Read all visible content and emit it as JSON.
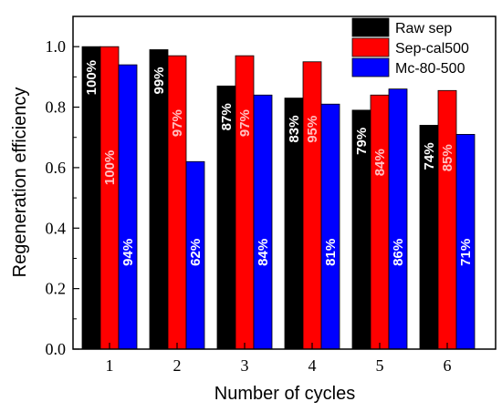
{
  "chart_data": {
    "type": "bar",
    "title": "",
    "xlabel": "Number of cycles",
    "ylabel": "Regeneration efficiency",
    "categories": [
      "1",
      "2",
      "3",
      "4",
      "5",
      "6"
    ],
    "ylim": [
      0,
      1.1
    ],
    "yticks": [
      "0.0",
      "0.2",
      "0.4",
      "0.6",
      "0.8",
      "1.0"
    ],
    "legend_position": "top-right",
    "grid": false,
    "series": [
      {
        "name": "Raw sep",
        "color": "#000000",
        "label_color": "#ffffff",
        "values": [
          1.0,
          0.99,
          0.87,
          0.83,
          0.79,
          0.74
        ],
        "labels": [
          "100%",
          "99%",
          "87%",
          "83%",
          "79%",
          "74%"
        ]
      },
      {
        "name": "Sep-cal500",
        "color": "#ff0000",
        "label_color": "#ffc0c0",
        "values": [
          1.0,
          0.97,
          0.97,
          0.95,
          0.84,
          0.855
        ],
        "labels": [
          "100%",
          "97%",
          "97%",
          "95%",
          "84%",
          "85%"
        ]
      },
      {
        "name": "Mc-80-500",
        "color": "#0000ff",
        "label_color": "#ffffff",
        "values": [
          0.94,
          0.62,
          0.84,
          0.81,
          0.86,
          0.71
        ],
        "labels": [
          "94%",
          "62%",
          "84%",
          "81%",
          "86%",
          "71%"
        ]
      }
    ]
  }
}
